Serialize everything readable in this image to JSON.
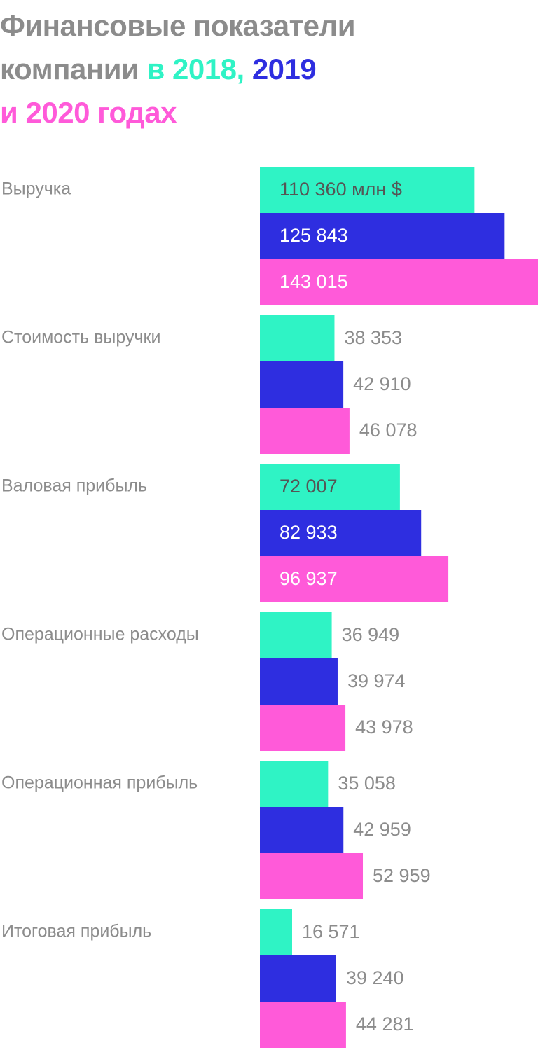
{
  "title": {
    "line1": "Финансовые показатели",
    "line2_prefix": "компании",
    "line2_in": "в",
    "year1": "2018,",
    "year2": "2019",
    "line3_and": "и",
    "year3": "2020",
    "line3_suffix": "годах"
  },
  "colors": {
    "title_gray": "#8c8c8c",
    "year2018": "#2ff3c5",
    "year2019": "#2e2ee0",
    "year2020": "#ff5ad9",
    "outside_label": "#8c8c8c",
    "inside_label_light": "#ffffff",
    "inside_label_dark": "#555555"
  },
  "chart_data": {
    "type": "bar",
    "orientation": "horizontal",
    "unit": "млн $",
    "categories": [
      "Выручка",
      "Стоимость выручки",
      "Валовая прибыль",
      "Операционные расходы",
      "Операционная прибыль",
      "Итоговая прибыль"
    ],
    "series": [
      {
        "name": "2018",
        "color": "#2ff3c5",
        "values": [
          110360,
          38353,
          72007,
          36949,
          35058,
          16571
        ]
      },
      {
        "name": "2019",
        "color": "#2e2ee0",
        "values": [
          125843,
          42910,
          82933,
          39974,
          42959,
          39240
        ]
      },
      {
        "name": "2020",
        "color": "#ff5ad9",
        "values": [
          143015,
          46078,
          96937,
          43978,
          52959,
          44281
        ]
      }
    ],
    "value_labels": [
      [
        "110 360 млн $",
        "125 843",
        "143 015"
      ],
      [
        "38 353",
        "42 910",
        "46 078"
      ],
      [
        "72 007",
        "82 933",
        "96 937"
      ],
      [
        "36 949",
        "39 974",
        "43 978"
      ],
      [
        "35 058",
        "42 959",
        "52 959"
      ],
      [
        "16 571",
        "39 240",
        "44 281"
      ]
    ],
    "grid": false,
    "legend": "title"
  }
}
